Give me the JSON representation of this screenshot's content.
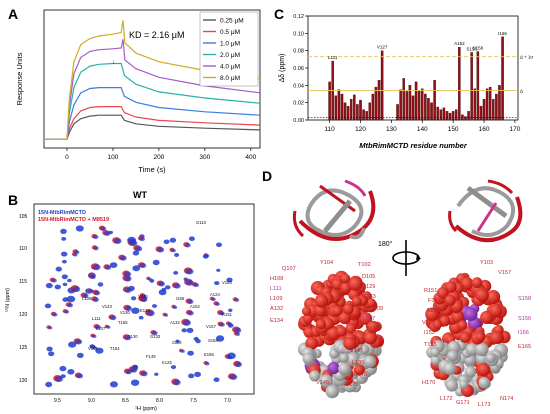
{
  "figure": {
    "panels": {
      "A": {
        "letter": "A"
      },
      "B": {
        "letter": "B"
      },
      "C": {
        "letter": "C"
      },
      "D": {
        "letter": "D"
      }
    }
  },
  "panel_A": {
    "kd_text": "KD = 2.16 μM",
    "arrow_marker": "↓"
  },
  "panel_B": {
    "title": "WT",
    "legend": [
      "15N-MtbRimMCTD",
      "15N-MtbRimMCTD + M8519"
    ],
    "peak_labels": [
      "G110",
      "V153",
      "A124",
      "R151",
      "L106",
      "V143",
      "V130",
      "T155",
      "L111",
      "Y146",
      "E139",
      "A132",
      "G133",
      "T130",
      "L107",
      "S119",
      "V145",
      "T154",
      "F149",
      "K125",
      "S158",
      "I165",
      "E166",
      "A152",
      "V157"
    ]
  },
  "panel_C": {
    "threshold_labels": [
      "Δ + 1σ",
      "Δ"
    ],
    "peak_labels": [
      "L111",
      "V127",
      "A152",
      "S156",
      "S158",
      "I166"
    ]
  },
  "panel_D": {
    "rotation_label": "180°",
    "left_labels": [
      "Q107",
      "Y104",
      "T102",
      "H108",
      "D105",
      "L111",
      "H129",
      "L109",
      "G133",
      "A132",
      "V109",
      "E134",
      "V127",
      "T130",
      "L135",
      "V147",
      "L136",
      "E176",
      "V145",
      "L175"
    ],
    "right_labels": [
      "Y103",
      "V157",
      "R151",
      "F149",
      "S158",
      "A152",
      "S156",
      "V150",
      "I153",
      "I166",
      "T155",
      "E165",
      "H170",
      "L172",
      "G171",
      "L173",
      "N174"
    ]
  },
  "chart_data": [
    {
      "panel": "A",
      "type": "line",
      "title": "",
      "xlabel": "Time (s)",
      "ylabel": "Response Units",
      "xlim": [
        -50,
        420
      ],
      "ylim": [
        -5,
        75
      ],
      "xticks": [
        0,
        100,
        200,
        300,
        400
      ],
      "legend_position": "top-right",
      "series": [
        {
          "name": "0.25 μM",
          "color": "#555555",
          "points": [
            [
              -50,
              0
            ],
            [
              0,
              0
            ],
            [
              5,
              4
            ],
            [
              15,
              9
            ],
            [
              30,
              12
            ],
            [
              50,
              13.5
            ],
            [
              70,
              14
            ],
            [
              100,
              14
            ],
            [
              118,
              14
            ],
            [
              125,
              11
            ],
            [
              150,
              9
            ],
            [
              200,
              7.6
            ],
            [
              300,
              6.5
            ],
            [
              420,
              5.5
            ]
          ]
        },
        {
          "name": "0.5 μM",
          "color": "#e8484f",
          "points": [
            [
              -50,
              0
            ],
            [
              0,
              0
            ],
            [
              5,
              6
            ],
            [
              15,
              12
            ],
            [
              30,
              16.5
            ],
            [
              50,
              18.5
            ],
            [
              70,
              19
            ],
            [
              100,
              19
            ],
            [
              118,
              19
            ],
            [
              125,
              15.5
            ],
            [
              150,
              13
            ],
            [
              200,
              11
            ],
            [
              300,
              9.6
            ],
            [
              420,
              8.3
            ]
          ]
        },
        {
          "name": "1.0 μM",
          "color": "#3b7de0",
          "points": [
            [
              -50,
              0
            ],
            [
              0,
              0
            ],
            [
              5,
              10
            ],
            [
              15,
              20
            ],
            [
              30,
              27
            ],
            [
              50,
              29.5
            ],
            [
              70,
              30
            ],
            [
              100,
              30
            ],
            [
              118,
              30
            ],
            [
              125,
              25
            ],
            [
              150,
              21.5
            ],
            [
              200,
              18.5
            ],
            [
              300,
              16
            ],
            [
              420,
              14
            ]
          ]
        },
        {
          "name": "2.0 μM",
          "color": "#2bb1a7",
          "points": [
            [
              -50,
              0
            ],
            [
              0,
              0
            ],
            [
              5,
              15
            ],
            [
              15,
              30
            ],
            [
              30,
              39
            ],
            [
              50,
              42.5
            ],
            [
              70,
              43.5
            ],
            [
              100,
              44
            ],
            [
              118,
              44
            ],
            [
              125,
              37
            ],
            [
              150,
              32
            ],
            [
              200,
              27.5
            ],
            [
              300,
              24
            ],
            [
              420,
              21
            ]
          ]
        },
        {
          "name": "4.0 μM",
          "color": "#a45cc9",
          "points": [
            [
              -50,
              0
            ],
            [
              0,
              0
            ],
            [
              5,
              19
            ],
            [
              15,
              38
            ],
            [
              30,
              47.5
            ],
            [
              50,
              51
            ],
            [
              70,
              52
            ],
            [
              100,
              52.5
            ],
            [
              118,
              53
            ],
            [
              122,
              58
            ],
            [
              126,
              46
            ],
            [
              150,
              41
            ],
            [
              200,
              36
            ],
            [
              300,
              31
            ],
            [
              420,
              27
            ]
          ]
        },
        {
          "name": "8.0 μM",
          "color": "#d2aa28",
          "points": [
            [
              -50,
              0
            ],
            [
              0,
              0
            ],
            [
              5,
              23
            ],
            [
              15,
              45
            ],
            [
              30,
              55
            ],
            [
              50,
              58.5
            ],
            [
              70,
              60
            ],
            [
              100,
              61
            ],
            [
              118,
              62
            ],
            [
              122,
              69
            ],
            [
              126,
              56
            ],
            [
              150,
              50
            ],
            [
              200,
              45
            ],
            [
              300,
              40
            ],
            [
              420,
              35
            ]
          ]
        }
      ]
    },
    {
      "panel": "C",
      "type": "bar",
      "title": "",
      "xlabel": "MtbRimMCTD residue number",
      "ylabel": "Δδ (ppm)",
      "xlim": [
        103,
        171
      ],
      "ylim": [
        0,
        0.12
      ],
      "xticks": [
        110,
        120,
        130,
        140,
        150,
        160,
        170
      ],
      "yticks": [
        0.0,
        0.02,
        0.04,
        0.06,
        0.08,
        0.1,
        0.12
      ],
      "thresholds": {
        "mean": 0.034,
        "mean_plus_sigma": 0.073
      },
      "residues": [
        110,
        111,
        112,
        113,
        114,
        115,
        116,
        117,
        118,
        119,
        120,
        121,
        122,
        123,
        124,
        125,
        126,
        127,
        132,
        133,
        134,
        135,
        136,
        137,
        138,
        139,
        140,
        141,
        142,
        143,
        144,
        145,
        146,
        147,
        148,
        149,
        150,
        151,
        152,
        153,
        154,
        155,
        156,
        157,
        158,
        159,
        160,
        161,
        162,
        163,
        164,
        165,
        166
      ],
      "values": [
        0.044,
        0.068,
        0.028,
        0.035,
        0.03,
        0.02,
        0.016,
        0.024,
        0.029,
        0.018,
        0.023,
        0.012,
        0.01,
        0.02,
        0.03,
        0.038,
        0.046,
        0.08,
        0.018,
        0.035,
        0.048,
        0.033,
        0.04,
        0.028,
        0.044,
        0.034,
        0.036,
        0.03,
        0.025,
        0.02,
        0.046,
        0.015,
        0.012,
        0.014,
        0.01,
        0.008,
        0.01,
        0.012,
        0.084,
        0.006,
        0.004,
        0.01,
        0.078,
        0.036,
        0.079,
        0.016,
        0.024,
        0.036,
        0.038,
        0.024,
        0.03,
        0.04,
        0.096
      ]
    }
  ]
}
